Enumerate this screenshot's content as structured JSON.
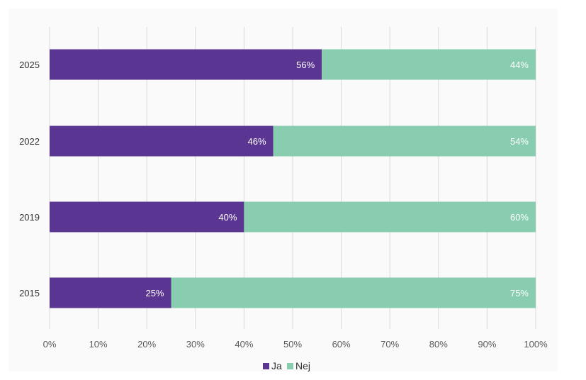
{
  "chart_data": {
    "type": "bar",
    "orientation": "horizontal",
    "stacked": true,
    "categories": [
      "2025",
      "2022",
      "2019",
      "2015"
    ],
    "series": [
      {
        "name": "Ja",
        "color": "#5a3592",
        "values": [
          56,
          46,
          40,
          25
        ],
        "labels": [
          "56%",
          "46%",
          "40%",
          "25%"
        ]
      },
      {
        "name": "Nej",
        "color": "#88cdb0",
        "values": [
          44,
          54,
          60,
          75
        ],
        "labels": [
          "44%",
          "54%",
          "60%",
          "75%"
        ]
      }
    ],
    "xlim": [
      0,
      100
    ],
    "x_ticks": [
      0,
      10,
      20,
      30,
      40,
      50,
      60,
      70,
      80,
      90,
      100
    ],
    "x_tick_labels": [
      "0%",
      "10%",
      "20%",
      "30%",
      "40%",
      "50%",
      "60%",
      "70%",
      "80%",
      "90%",
      "100%"
    ],
    "grid": true,
    "legend_position": "bottom-center"
  }
}
